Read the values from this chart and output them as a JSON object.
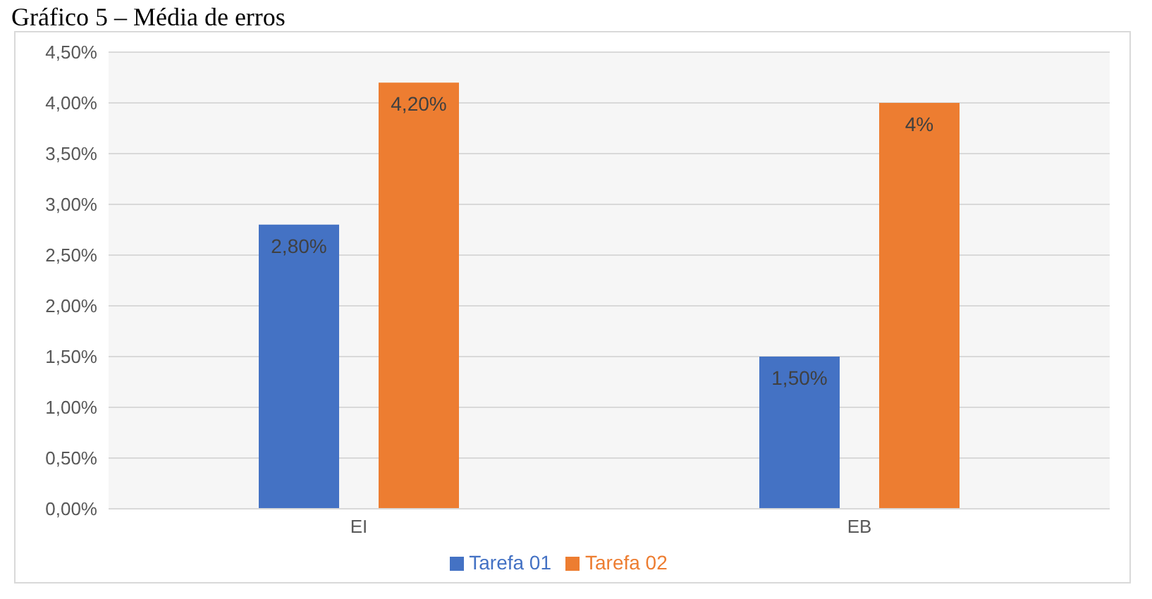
{
  "chart_data": {
    "type": "bar",
    "title": "Gráfico 5 – Média de erros",
    "categories": [
      "EI",
      "EB"
    ],
    "series": [
      {
        "name": "Tarefa 01",
        "color": "#4472c4",
        "values": [
          2.8,
          1.5
        ],
        "value_labels": [
          "2,80%",
          "1,50%"
        ]
      },
      {
        "name": "Tarefa 02",
        "color": "#ed7d31",
        "values": [
          4.2,
          4
        ],
        "value_labels": [
          "4,20%",
          "4%"
        ]
      }
    ],
    "ylim": [
      0,
      4.5
    ],
    "yticks": [
      {
        "value": 0,
        "label": "0,00%"
      },
      {
        "value": 0.5,
        "label": "0,50%"
      },
      {
        "value": 1,
        "label": "1,00%"
      },
      {
        "value": 1.5,
        "label": "1,50%"
      },
      {
        "value": 2,
        "label": "2,00%"
      },
      {
        "value": 2.5,
        "label": "2,50%"
      },
      {
        "value": 3,
        "label": "3,00%"
      },
      {
        "value": 3.5,
        "label": "3,50%"
      },
      {
        "value": 4,
        "label": "4,00%"
      },
      {
        "value": 4.5,
        "label": "4,50%"
      }
    ],
    "grid": "y",
    "legend": "bottom"
  }
}
